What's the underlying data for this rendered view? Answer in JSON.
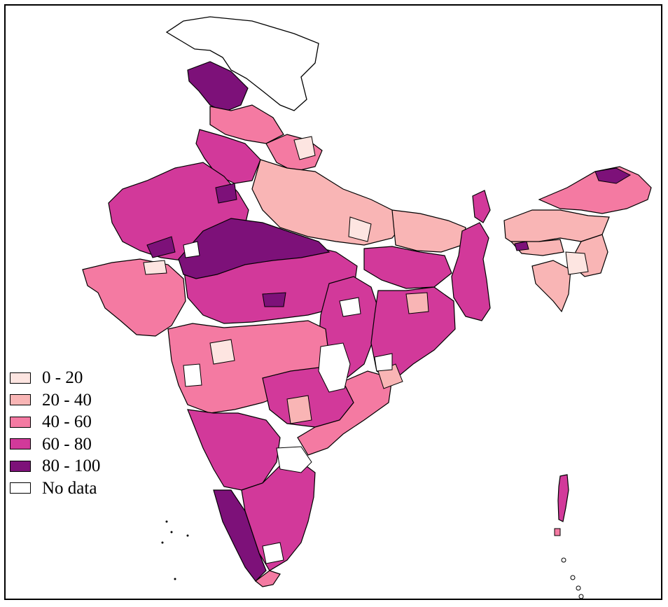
{
  "legend": {
    "items": [
      {
        "label": "0 - 20",
        "color": "#fde5e1"
      },
      {
        "label": "20 - 40",
        "color": "#f9b5b5"
      },
      {
        "label": "40 - 60",
        "color": "#f47aa2"
      },
      {
        "label": "60 - 80",
        "color": "#d2399a"
      },
      {
        "label": "80 - 100",
        "color": "#7d1179"
      },
      {
        "label": "No data",
        "color": "#ffffff"
      }
    ]
  }
}
